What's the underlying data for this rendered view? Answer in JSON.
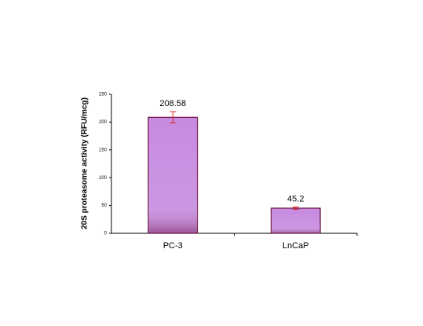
{
  "chart_data": {
    "type": "bar",
    "y_label": "20S proteasome activity (RFU/mcg)",
    "categories": [
      "PC-3",
      "LnCaP"
    ],
    "values": [
      208.58,
      45.2
    ],
    "errors": [
      10,
      2
    ],
    "color": "#c78ae0",
    "error_color": "#e02020",
    "ylim": [
      0,
      250
    ],
    "yticks": [
      0,
      50,
      100,
      150,
      200,
      250
    ],
    "grid": false
  }
}
